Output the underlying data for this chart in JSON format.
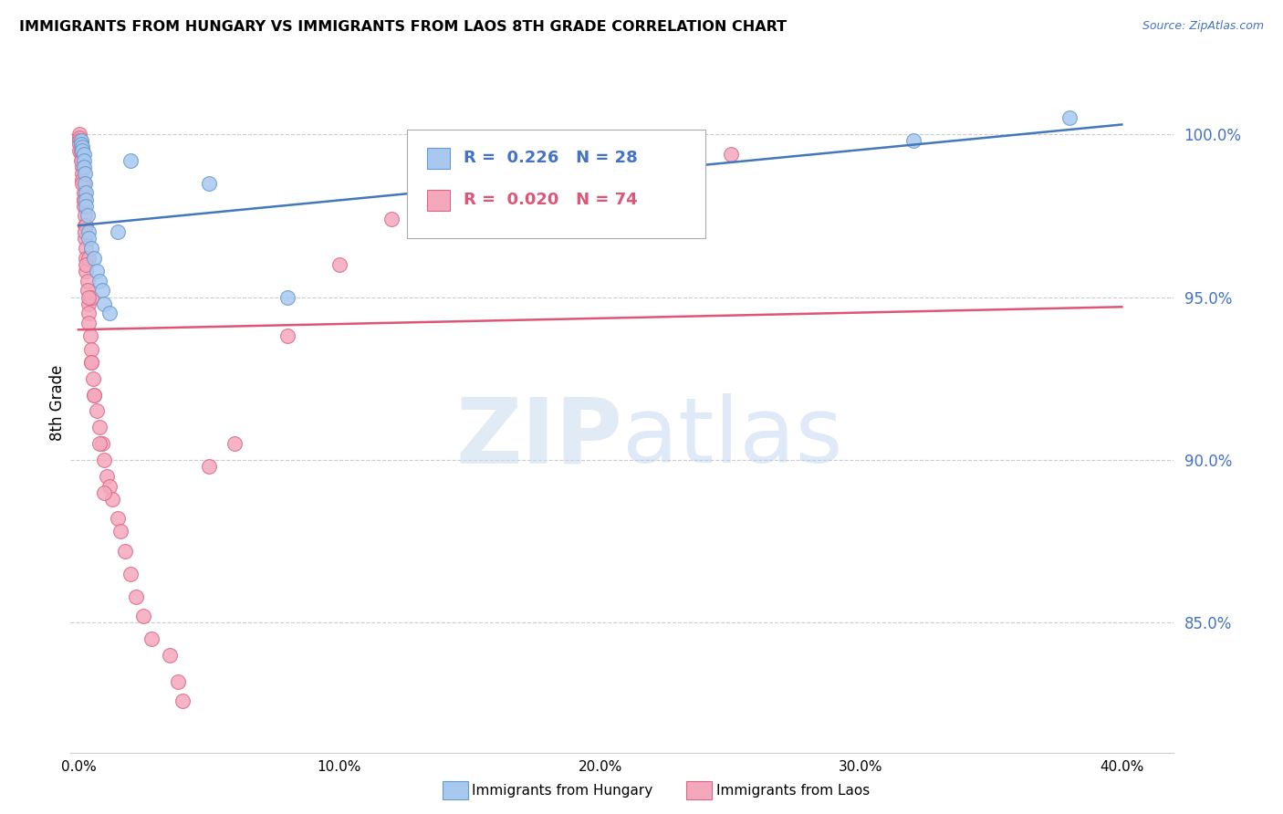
{
  "title": "IMMIGRANTS FROM HUNGARY VS IMMIGRANTS FROM LAOS 8TH GRADE CORRELATION CHART",
  "source": "Source: ZipAtlas.com",
  "ylabel": "8th Grade",
  "hungary_color": "#A8C8F0",
  "laos_color": "#F4A8BC",
  "hungary_edge": "#6699CC",
  "laos_edge": "#DD6688",
  "hungary_line_color": "#4477BB",
  "laos_line_color": "#DD5577",
  "legend_hungary_label": "R =  0.226   N = 28",
  "legend_laos_label": "R =  0.020   N = 74",
  "legend_label_hungary": "Immigrants from Hungary",
  "legend_label_laos": "Immigrants from Laos",
  "hungary_x": [
    0.1,
    0.1,
    0.15,
    0.15,
    0.2,
    0.2,
    0.2,
    0.25,
    0.25,
    0.3,
    0.3,
    0.3,
    0.35,
    0.4,
    0.4,
    0.5,
    0.6,
    0.7,
    0.8,
    0.9,
    1.0,
    1.2,
    1.5,
    2.0,
    5.0,
    8.0,
    32.0,
    38.0
  ],
  "hungary_y": [
    99.8,
    99.7,
    99.6,
    99.5,
    99.4,
    99.2,
    99.0,
    98.8,
    98.5,
    98.2,
    98.0,
    97.8,
    97.5,
    97.0,
    96.8,
    96.5,
    96.2,
    95.8,
    95.5,
    95.2,
    94.8,
    94.5,
    97.0,
    99.2,
    98.5,
    95.0,
    99.8,
    100.5
  ],
  "laos_x": [
    0.05,
    0.05,
    0.05,
    0.1,
    0.1,
    0.1,
    0.1,
    0.15,
    0.15,
    0.15,
    0.15,
    0.2,
    0.2,
    0.2,
    0.2,
    0.25,
    0.25,
    0.25,
    0.3,
    0.3,
    0.3,
    0.35,
    0.35,
    0.4,
    0.4,
    0.4,
    0.45,
    0.5,
    0.5,
    0.55,
    0.6,
    0.7,
    0.8,
    0.9,
    1.0,
    1.1,
    1.2,
    1.3,
    1.5,
    1.6,
    1.8,
    2.0,
    2.2,
    2.5,
    2.8,
    3.5,
    3.8,
    4.0,
    5.0,
    6.0,
    8.0,
    10.0,
    12.0,
    15.0,
    20.0,
    25.0,
    0.05,
    0.05,
    0.1,
    0.15,
    0.2,
    0.3,
    0.4,
    0.5,
    0.1,
    0.15,
    0.2,
    0.25,
    0.3,
    0.4,
    0.5,
    0.6,
    0.8,
    1.0
  ],
  "laos_y": [
    100.0,
    99.9,
    99.8,
    99.7,
    99.6,
    99.5,
    99.4,
    99.3,
    99.2,
    99.0,
    98.8,
    98.5,
    98.2,
    98.0,
    97.8,
    97.5,
    97.2,
    96.8,
    96.5,
    96.2,
    95.8,
    95.5,
    95.2,
    94.8,
    94.5,
    94.2,
    93.8,
    93.4,
    93.0,
    92.5,
    92.0,
    91.5,
    91.0,
    90.5,
    90.0,
    89.5,
    89.2,
    88.8,
    88.2,
    87.8,
    87.2,
    86.5,
    85.8,
    85.2,
    84.5,
    84.0,
    83.2,
    82.6,
    89.8,
    90.5,
    93.8,
    96.0,
    97.4,
    98.5,
    99.0,
    99.4,
    99.7,
    99.5,
    99.2,
    98.6,
    98.0,
    97.2,
    96.2,
    95.0,
    99.5,
    98.5,
    98.0,
    97.0,
    96.0,
    95.0,
    93.0,
    92.0,
    90.5,
    89.0
  ],
  "hungary_line_x": [
    0.0,
    40.0
  ],
  "hungary_line_y": [
    97.2,
    100.3
  ],
  "laos_line_x": [
    0.0,
    40.0
  ],
  "laos_line_y": [
    94.0,
    94.7
  ],
  "xlim": [
    -0.3,
    42.0
  ],
  "ylim": [
    81.0,
    102.5
  ],
  "x_tick_vals": [
    0.0,
    10.0,
    20.0,
    30.0,
    40.0
  ],
  "x_tick_labels": [
    "0.0%",
    "10.0%",
    "20.0%",
    "30.0%",
    "40.0%"
  ],
  "y_tick_vals": [
    85.0,
    90.0,
    95.0,
    100.0
  ],
  "y_tick_labels": [
    "85.0%",
    "90.0%",
    "95.0%",
    "100.0%"
  ],
  "grid_color": "#CCCCCC",
  "tick_color": "#4472C4"
}
